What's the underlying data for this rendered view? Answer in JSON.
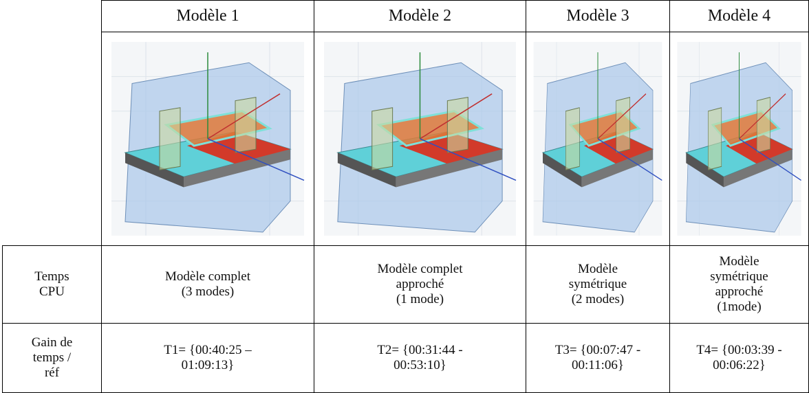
{
  "table": {
    "headers": [
      "Modèle 1",
      "Modèle 2",
      "Modèle 3",
      "Modèle 4"
    ],
    "rows": [
      {
        "label": "Temps\nCPU",
        "cells": [
          "Modèle complet\n(3 modes)",
          "Modèle complet\napproché\n(1 mode)",
          "Modèle\nsymétrique\n(2 modes)",
          "Modèle\nsymétrique\napproché\n(1mode)"
        ]
      },
      {
        "label": "Gain de\ntemps /\nréf",
        "cells": [
          "T1= {00:40:25 –\n01:09:13}",
          "T2= {00:31:44 -\n00:53:10}",
          "T3= {00:07:47 -\n00:11:06}",
          "T4= {00:03:39 -\n00:06:22}"
        ]
      }
    ]
  }
}
